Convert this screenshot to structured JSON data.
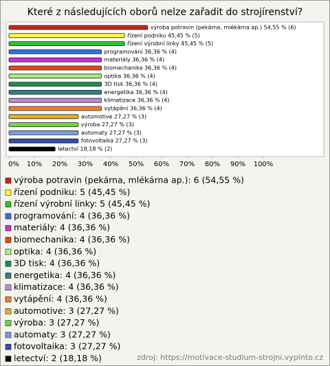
{
  "chart_data": {
    "type": "bar",
    "title": "Které z následujících oborů nelze zařadit do strojírenství?",
    "categories": [
      "výroba potravin (pekárna, mlékárna ap.)",
      "řízení podniku",
      "řízení výrobní linky",
      "programování",
      "materiály",
      "biomechanika",
      "optika",
      "3D tisk",
      "energetika",
      "klimatizace",
      "vytápění",
      "automotive",
      "výroba",
      "automaty",
      "fotovoltaika",
      "letectví"
    ],
    "values": [
      54.55,
      45.45,
      45.45,
      36.36,
      36.36,
      36.36,
      36.36,
      36.36,
      36.36,
      36.36,
      36.36,
      27.27,
      27.27,
      27.27,
      27.27,
      18.18
    ],
    "value_labels": [
      "výroba potravin (pekárna, mlékárna ap.) 54,55 % (6)",
      "řízení podniku 45,45 % (5)",
      "řízení výrobní linky 45,45 % (5)",
      "programování 36,36 % (4)",
      "materiály 36,36 % (4)",
      "biomechanika 36,36 % (4)",
      "optika 36,36 % (4)",
      "3D tisk 36,36 % (4)",
      "energetika 36,36 % (4)",
      "klimatizace 36,36 % (4)",
      "vytápění 36,36 % (4)",
      "automotive 27,27 % (3)",
      "výroba 27,27 % (3)",
      "automaty 27,27 % (3)",
      "fotovoltaika 27,27 % (3)",
      "letectví 18,18 % (2)"
    ],
    "legend_labels": [
      "výroba potravin (pekárna, mlékárna ap.): 6 (54,55 %)",
      "řízení podniku: 5 (45,45 %)",
      "řízení výrobní linky: 5 (45,45 %)",
      "programování: 4 (36,36 %)",
      "materiály: 4 (36,36 %)",
      "biomechanika: 4 (36,36 %)",
      "optika: 4 (36,36 %)",
      "3D tisk: 4 (36,36 %)",
      "energetika: 4 (36,36 %)",
      "klimatizace: 4 (36,36 %)",
      "vytápění: 4 (36,36 %)",
      "automotive: 3 (27,27 %)",
      "výroba: 3 (27,27 %)",
      "automaty: 3 (27,27 %)",
      "fotovoltaika: 3 (27,27 %)",
      "letectví: 2 (18,18 %)"
    ],
    "colors": [
      "#c0281c",
      "#ffff40",
      "#30c030",
      "#3a6fd8",
      "#cc30cc",
      "#e04818",
      "#a8f080",
      "#18904a",
      "#2a8080",
      "#c08ad8",
      "#f08020",
      "#e8b020",
      "#70d840",
      "#7b9ee0",
      "#3050b0",
      "#000000"
    ],
    "xlim": [
      0,
      100
    ],
    "xticks": [
      {
        "value": 0,
        "label": "0%"
      },
      {
        "value": 10,
        "label": "10%"
      },
      {
        "value": 20,
        "label": "20%"
      },
      {
        "value": 30,
        "label": "30%"
      },
      {
        "value": 40,
        "label": "40%"
      },
      {
        "value": 50,
        "label": "50%"
      },
      {
        "value": 60,
        "label": "60%"
      },
      {
        "value": 70,
        "label": "70%"
      },
      {
        "value": 80,
        "label": "80%"
      },
      {
        "value": 90,
        "label": "90%"
      },
      {
        "value": 100,
        "label": "100%"
      }
    ],
    "source": "zdroj: https://motivace-studium-strojni.vyplnto.cz"
  }
}
